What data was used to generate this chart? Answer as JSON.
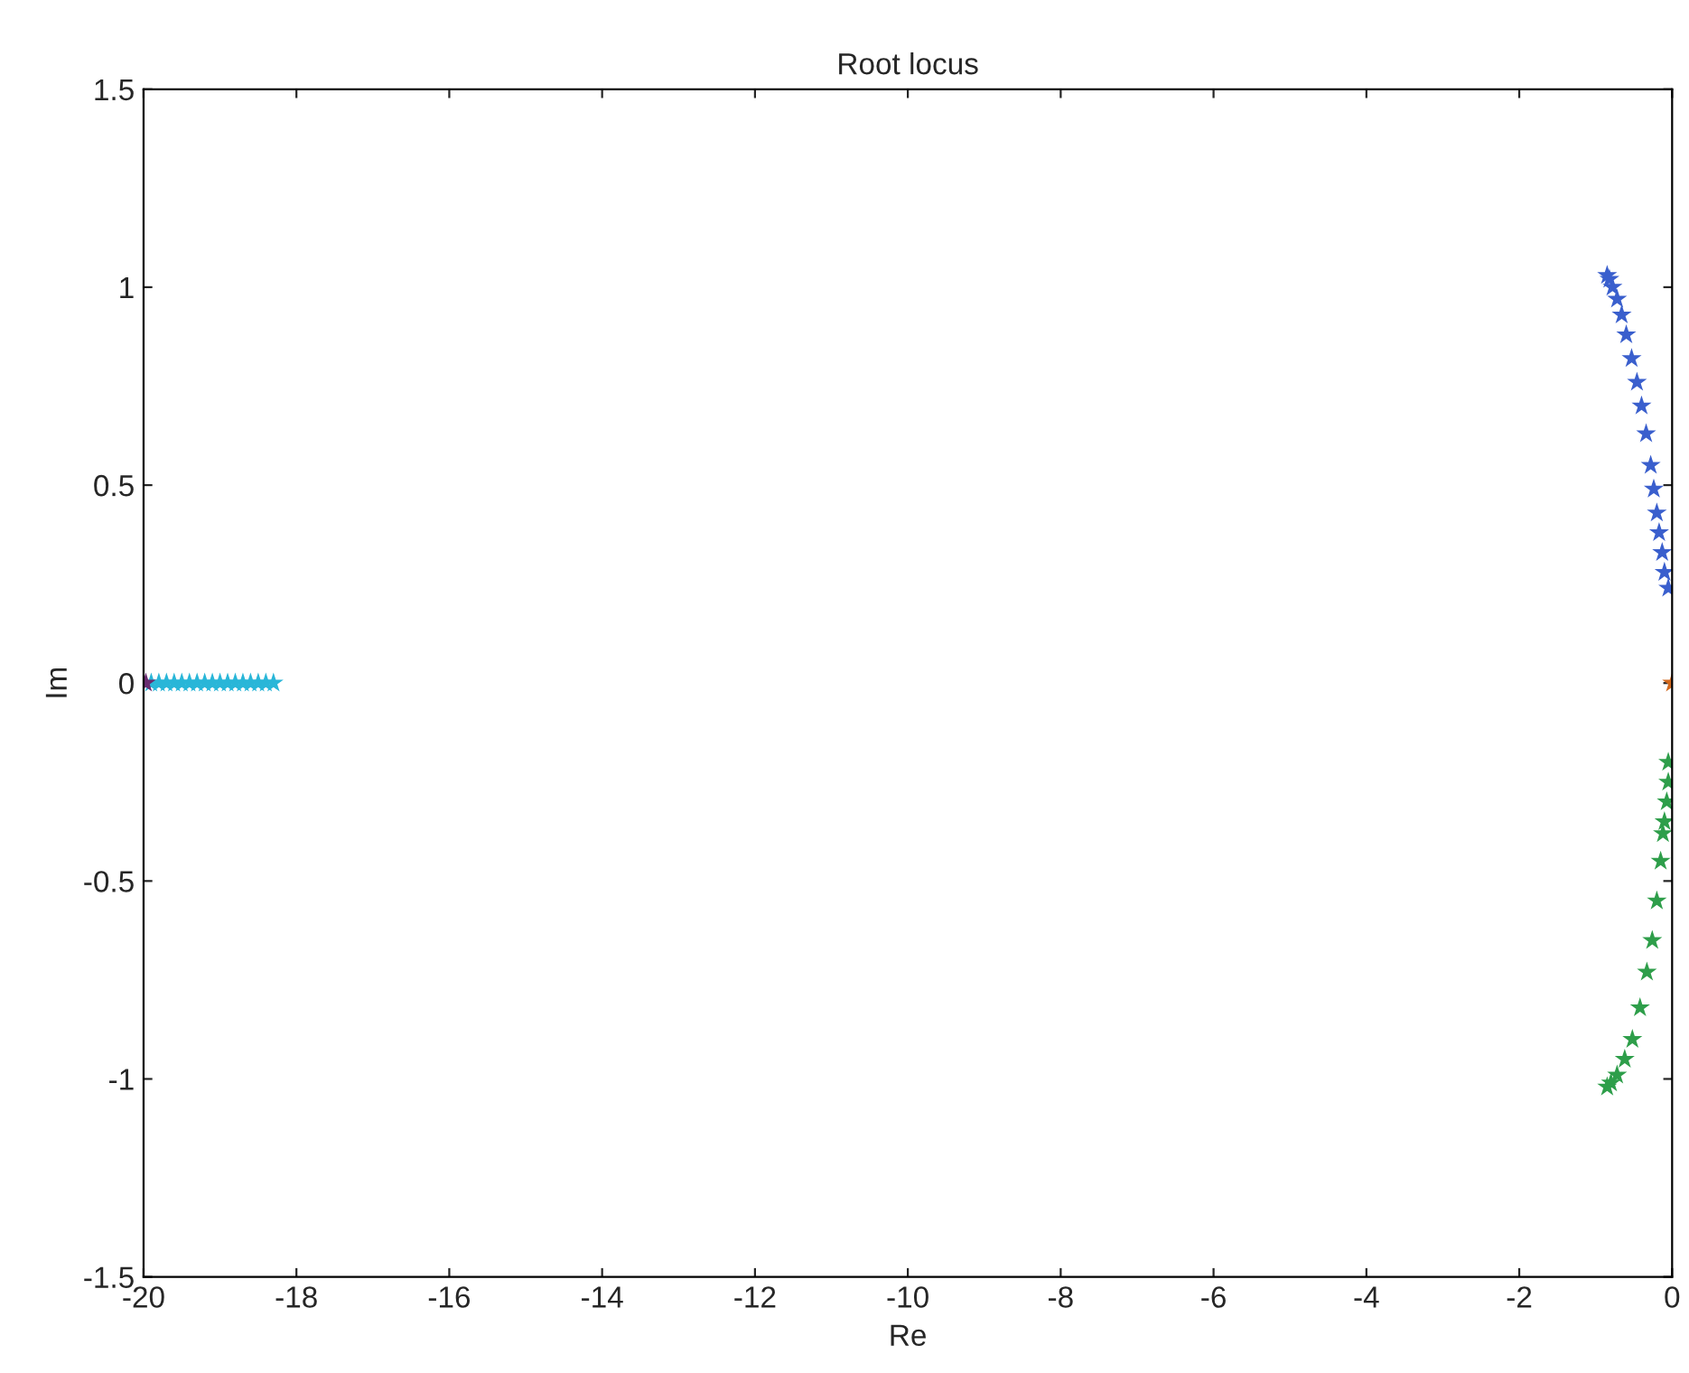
{
  "chart_data": {
    "type": "scatter",
    "title": "Root locus",
    "xlabel": "Re",
    "ylabel": "Im",
    "xlim": [
      -20,
      0
    ],
    "xticks": [
      -20,
      -18,
      -16,
      -14,
      -12,
      -10,
      -8,
      -6,
      -4,
      -2,
      0
    ],
    "ylim": [
      -1.5,
      1.5
    ],
    "yticks": [
      -1.5,
      -1,
      -0.5,
      0,
      0.5,
      1,
      1.5
    ],
    "marker": "star",
    "grid": false,
    "series": [
      {
        "color": "#3a5fcd",
        "x": [
          -0.85,
          -0.82,
          -0.78,
          -0.72,
          -0.66,
          -0.6,
          -0.53,
          -0.46,
          -0.4,
          -0.34,
          -0.28,
          -0.24,
          -0.2,
          -0.17,
          -0.13,
          -0.1,
          -0.05
        ],
        "values": [
          1.03,
          1.02,
          1.0,
          0.97,
          0.93,
          0.88,
          0.82,
          0.76,
          0.7,
          0.63,
          0.55,
          0.49,
          0.43,
          0.38,
          0.33,
          0.28,
          0.24
        ]
      },
      {
        "color": "#2e9e4a",
        "x": [
          -0.05,
          -0.05,
          -0.07,
          -0.1,
          -0.12,
          -0.15,
          -0.2,
          -0.26,
          -0.33,
          -0.42,
          -0.52,
          -0.62,
          -0.72,
          -0.8,
          -0.85
        ],
        "values": [
          -0.2,
          -0.25,
          -0.3,
          -0.35,
          -0.38,
          -0.45,
          -0.55,
          -0.65,
          -0.73,
          -0.82,
          -0.9,
          -0.95,
          -0.99,
          -1.01,
          -1.02
        ]
      },
      {
        "color": "#d2691e",
        "x": [
          0
        ],
        "values": [
          0
        ]
      },
      {
        "color": "#29b6d8",
        "x": [
          -19.9,
          -19.8,
          -19.7,
          -19.6,
          -19.5,
          -19.4,
          -19.3,
          -19.2,
          -19.1,
          -19.0,
          -18.9,
          -18.8,
          -18.7,
          -18.6,
          -18.5,
          -18.4,
          -18.3
        ],
        "values": [
          0,
          0,
          0,
          0,
          0,
          0,
          0,
          0,
          0,
          0,
          0,
          0,
          0,
          0,
          0,
          0,
          0
        ]
      },
      {
        "color": "#6a2c70",
        "x": [
          -19.97
        ],
        "values": [
          0
        ]
      }
    ]
  }
}
